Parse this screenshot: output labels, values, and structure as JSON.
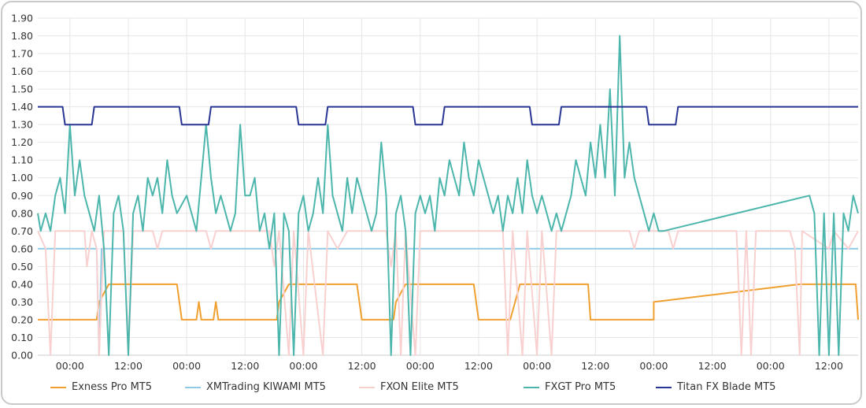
{
  "chart_data": {
    "type": "line",
    "title": "",
    "xlabel": "",
    "ylabel": "",
    "ylim": [
      0,
      1.9
    ],
    "y_ticks": [
      "0.00",
      "0.10",
      "0.20",
      "0.30",
      "0.40",
      "0.50",
      "0.60",
      "0.70",
      "0.80",
      "0.90",
      "1.00",
      "1.10",
      "1.20",
      "1.30",
      "1.40",
      "1.50",
      "1.60",
      "1.70",
      "1.80",
      "1.90"
    ],
    "x_ticks": [
      "00:00",
      "12:00",
      "00:00",
      "12:00",
      "00:00",
      "12:00",
      "00:00",
      "12:00",
      "00:00",
      "12:00",
      "00:00",
      "12:00",
      "00:00",
      "12:00"
    ],
    "x_unit": "hours from first 00:00 tick",
    "xlim": [
      -6.6,
      162
    ],
    "grid": true,
    "legend_position": "bottom",
    "series": [
      {
        "name": "Exness Pro MT5",
        "color": "#f0a030",
        "points": [
          [
            -6.6,
            0.2
          ],
          [
            5.5,
            0.2
          ],
          [
            6,
            0.3
          ],
          [
            8,
            0.4
          ],
          [
            22,
            0.4
          ],
          [
            23,
            0.2
          ],
          [
            26,
            0.2
          ],
          [
            26.5,
            0.3
          ],
          [
            27,
            0.2
          ],
          [
            29.5,
            0.2
          ],
          [
            30,
            0.3
          ],
          [
            30.5,
            0.2
          ],
          [
            42.5,
            0.2
          ],
          [
            43,
            0.3
          ],
          [
            45,
            0.4
          ],
          [
            59,
            0.4
          ],
          [
            60,
            0.2
          ],
          [
            66.5,
            0.2
          ],
          [
            67,
            0.3
          ],
          [
            69,
            0.4
          ],
          [
            83,
            0.4
          ],
          [
            84,
            0.2
          ],
          [
            90.5,
            0.2
          ],
          [
            92.5,
            0.4
          ],
          [
            106.5,
            0.4
          ],
          [
            107,
            0.2
          ],
          [
            120,
            0.2
          ],
          [
            120,
            0.3
          ],
          [
            150,
            0.4
          ],
          [
            161.5,
            0.4
          ],
          [
            162,
            0.2
          ]
        ]
      },
      {
        "name": "XMTrading KIWAMI MT5",
        "color": "#8ecae6",
        "points": [
          [
            -6.6,
            0.6
          ],
          [
            5.5,
            0.6
          ],
          [
            6,
            0.0
          ],
          [
            6.5,
            0.6
          ],
          [
            162,
            0.6
          ]
        ]
      },
      {
        "name": "FXON Elite MT5",
        "color": "#f8d0d0",
        "points": [
          [
            -6.6,
            0.7
          ],
          [
            -5,
            0.6
          ],
          [
            -4,
            0.0
          ],
          [
            -3,
            0.7
          ],
          [
            3,
            0.7
          ],
          [
            3.5,
            0.5
          ],
          [
            4.5,
            0.7
          ],
          [
            5.5,
            0.6
          ],
          [
            6,
            0.0
          ],
          [
            7,
            0.7
          ],
          [
            11,
            0.7
          ],
          [
            12,
            0.0
          ],
          [
            13,
            0.7
          ],
          [
            17,
            0.7
          ],
          [
            18,
            0.6
          ],
          [
            19,
            0.7
          ],
          [
            28,
            0.7
          ],
          [
            29,
            0.6
          ],
          [
            30,
            0.7
          ],
          [
            41,
            0.7
          ],
          [
            42,
            0.5
          ],
          [
            43,
            0.7
          ],
          [
            45,
            0.0
          ],
          [
            46,
            0.7
          ],
          [
            48,
            0.0
          ],
          [
            49,
            0.7
          ],
          [
            52,
            0.0
          ],
          [
            53,
            0.7
          ],
          [
            55,
            0.6
          ],
          [
            57,
            0.7
          ],
          [
            65,
            0.7
          ],
          [
            66,
            0.5
          ],
          [
            67,
            0.7
          ],
          [
            68,
            0.0
          ],
          [
            69,
            0.7
          ],
          [
            71,
            0.0
          ],
          [
            72,
            0.7
          ],
          [
            89,
            0.7
          ],
          [
            90,
            0.0
          ],
          [
            91,
            0.7
          ],
          [
            93,
            0.0
          ],
          [
            94,
            0.7
          ],
          [
            96,
            0.0
          ],
          [
            97,
            0.7
          ],
          [
            99,
            0.0
          ],
          [
            100,
            0.7
          ],
          [
            115,
            0.7
          ],
          [
            116,
            0.6
          ],
          [
            117,
            0.7
          ],
          [
            123,
            0.7
          ],
          [
            124,
            0.6
          ],
          [
            125,
            0.7
          ],
          [
            137,
            0.7
          ],
          [
            138,
            0.0
          ],
          [
            139,
            0.7
          ],
          [
            140,
            0.0
          ],
          [
            141,
            0.7
          ],
          [
            148,
            0.7
          ],
          [
            149,
            0.6
          ],
          [
            150,
            0.0
          ],
          [
            150.5,
            0.7
          ],
          [
            156,
            0.6
          ],
          [
            157,
            0.7
          ],
          [
            160,
            0.6
          ],
          [
            162,
            0.7
          ]
        ]
      },
      {
        "name": "FXGT Pro MT5",
        "color": "#4db6ac",
        "points": [
          [
            -6.6,
            0.8
          ],
          [
            -6,
            0.7
          ],
          [
            -5,
            0.8
          ],
          [
            -4,
            0.7
          ],
          [
            -3,
            0.9
          ],
          [
            -2,
            1.0
          ],
          [
            -1,
            0.8
          ],
          [
            0,
            1.3
          ],
          [
            1,
            0.9
          ],
          [
            2,
            1.1
          ],
          [
            3,
            0.9
          ],
          [
            4,
            0.8
          ],
          [
            5,
            0.7
          ],
          [
            6,
            0.9
          ],
          [
            7,
            0.6
          ],
          [
            8,
            0.0
          ],
          [
            9,
            0.8
          ],
          [
            10,
            0.9
          ],
          [
            11,
            0.7
          ],
          [
            12,
            0.0
          ],
          [
            13,
            0.8
          ],
          [
            14,
            0.9
          ],
          [
            15,
            0.7
          ],
          [
            16,
            1.0
          ],
          [
            17,
            0.9
          ],
          [
            18,
            1.0
          ],
          [
            19,
            0.8
          ],
          [
            20,
            1.1
          ],
          [
            21,
            0.9
          ],
          [
            22,
            0.8
          ],
          [
            24,
            0.9
          ],
          [
            25,
            0.8
          ],
          [
            26,
            0.7
          ],
          [
            28,
            1.3
          ],
          [
            29,
            1.0
          ],
          [
            30,
            0.8
          ],
          [
            31,
            0.9
          ],
          [
            32,
            0.8
          ],
          [
            33,
            0.7
          ],
          [
            34,
            0.8
          ],
          [
            35,
            1.3
          ],
          [
            36,
            0.9
          ],
          [
            37,
            0.9
          ],
          [
            38,
            1.0
          ],
          [
            39,
            0.7
          ],
          [
            40,
            0.8
          ],
          [
            41,
            0.6
          ],
          [
            42,
            0.8
          ],
          [
            43,
            0.0
          ],
          [
            44,
            0.8
          ],
          [
            45,
            0.7
          ],
          [
            46,
            0.0
          ],
          [
            47,
            0.8
          ],
          [
            48,
            0.9
          ],
          [
            49,
            0.7
          ],
          [
            50,
            0.8
          ],
          [
            51,
            1.0
          ],
          [
            52,
            0.8
          ],
          [
            53,
            1.3
          ],
          [
            54,
            0.9
          ],
          [
            55,
            0.8
          ],
          [
            56,
            0.7
          ],
          [
            57,
            1.0
          ],
          [
            58,
            0.8
          ],
          [
            59,
            1.0
          ],
          [
            60,
            0.9
          ],
          [
            61,
            0.8
          ],
          [
            62,
            0.7
          ],
          [
            63,
            0.8
          ],
          [
            64,
            1.2
          ],
          [
            65,
            0.9
          ],
          [
            66,
            0.0
          ],
          [
            67,
            0.8
          ],
          [
            68,
            0.9
          ],
          [
            69,
            0.7
          ],
          [
            70,
            0.0
          ],
          [
            71,
            0.8
          ],
          [
            72,
            0.9
          ],
          [
            73,
            0.8
          ],
          [
            74,
            0.9
          ],
          [
            75,
            0.7
          ],
          [
            76,
            1.0
          ],
          [
            77,
            0.9
          ],
          [
            78,
            1.1
          ],
          [
            79,
            1.0
          ],
          [
            80,
            0.9
          ],
          [
            81,
            1.2
          ],
          [
            82,
            1.0
          ],
          [
            83,
            0.9
          ],
          [
            84,
            1.1
          ],
          [
            85,
            1.0
          ],
          [
            86,
            0.9
          ],
          [
            87,
            0.8
          ],
          [
            88,
            0.9
          ],
          [
            89,
            0.7
          ],
          [
            90,
            0.9
          ],
          [
            91,
            0.8
          ],
          [
            92,
            1.0
          ],
          [
            93,
            0.8
          ],
          [
            94,
            1.1
          ],
          [
            95,
            0.9
          ],
          [
            96,
            0.8
          ],
          [
            97,
            0.9
          ],
          [
            98,
            0.8
          ],
          [
            99,
            0.7
          ],
          [
            100,
            0.8
          ],
          [
            101,
            0.7
          ],
          [
            102,
            0.8
          ],
          [
            103,
            0.9
          ],
          [
            104,
            1.1
          ],
          [
            105,
            1.0
          ],
          [
            106,
            0.9
          ],
          [
            107,
            1.2
          ],
          [
            108,
            1.0
          ],
          [
            109,
            1.3
          ],
          [
            110,
            1.0
          ],
          [
            111,
            1.5
          ],
          [
            112,
            0.9
          ],
          [
            113,
            1.8
          ],
          [
            114,
            1.0
          ],
          [
            115,
            1.2
          ],
          [
            116,
            1.0
          ],
          [
            117,
            0.9
          ],
          [
            118,
            0.8
          ],
          [
            119,
            0.7
          ],
          [
            120,
            0.8
          ],
          [
            121,
            0.7
          ],
          [
            122,
            0.7
          ],
          [
            152,
            0.9
          ],
          [
            153,
            0.8
          ],
          [
            154,
            0.0
          ],
          [
            155,
            0.8
          ],
          [
            156,
            0.0
          ],
          [
            157,
            0.8
          ],
          [
            158,
            0.0
          ],
          [
            159,
            0.8
          ],
          [
            160,
            0.7
          ],
          [
            161,
            0.9
          ],
          [
            162,
            0.8
          ]
        ]
      },
      {
        "name": "Titan FX Blade MT5",
        "color": "#283593",
        "points": [
          [
            -6.6,
            1.4
          ],
          [
            -1.5,
            1.4
          ],
          [
            -1,
            1.3
          ],
          [
            4.5,
            1.3
          ],
          [
            5,
            1.4
          ],
          [
            22.5,
            1.4
          ],
          [
            23,
            1.3
          ],
          [
            28.5,
            1.3
          ],
          [
            29,
            1.4
          ],
          [
            46.5,
            1.4
          ],
          [
            47,
            1.3
          ],
          [
            52.5,
            1.3
          ],
          [
            53,
            1.4
          ],
          [
            70.5,
            1.4
          ],
          [
            71,
            1.3
          ],
          [
            76.5,
            1.3
          ],
          [
            77,
            1.4
          ],
          [
            94.5,
            1.4
          ],
          [
            95,
            1.3
          ],
          [
            100.5,
            1.3
          ],
          [
            101,
            1.4
          ],
          [
            118.5,
            1.4
          ],
          [
            119,
            1.3
          ],
          [
            124.5,
            1.3
          ],
          [
            125,
            1.4
          ],
          [
            162,
            1.4
          ]
        ]
      }
    ]
  },
  "legend": {
    "items": [
      {
        "label": "Exness Pro MT5",
        "color": "#f0a030"
      },
      {
        "label": "XMTrading KIWAMI MT5",
        "color": "#8ecae6"
      },
      {
        "label": "FXON Elite MT5",
        "color": "#f8d0d0"
      },
      {
        "label": "FXGT Pro MT5",
        "color": "#4db6ac"
      },
      {
        "label": "Titan FX Blade MT5",
        "color": "#283593"
      }
    ]
  }
}
